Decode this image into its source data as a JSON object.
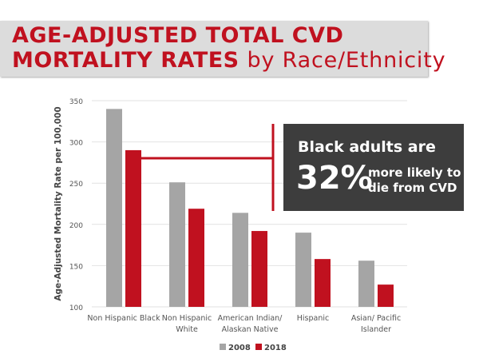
{
  "title": {
    "bold_line1": "AGE-ADJUSTED TOTAL CVD",
    "bold_line2": "MORTALITY RATES",
    "suffix": "by Race/Ethnicity"
  },
  "callout": {
    "line1": "Black adults are",
    "percent": "32%",
    "line2a": "more likely to",
    "line2b": "die from CVD"
  },
  "colors": {
    "title": "#c0111f",
    "series_2008": "#a5a5a5",
    "series_2018": "#c0111f",
    "callout_bg": "#3d3d3d",
    "band_bg": "#dcdcdc"
  },
  "chart_data": {
    "type": "bar",
    "ylabel": "Age-Adjusted Mortality Rate per 100,000",
    "xlabel": "",
    "ylim": [
      100,
      350
    ],
    "yticks": [
      100,
      150,
      200,
      250,
      300,
      350
    ],
    "grid": true,
    "legend": "bottom",
    "categories": [
      [
        "Non Hispanic Black"
      ],
      [
        "Non Hispanic",
        "White"
      ],
      [
        "American Indian/",
        "Alaskan Native"
      ],
      [
        "Hispanic"
      ],
      [
        "Asian/ Pacific",
        "Islander"
      ]
    ],
    "series": [
      {
        "name": "2008",
        "values": [
          340,
          251,
          214,
          190,
          156
        ]
      },
      {
        "name": "2018",
        "values": [
          290,
          219,
          192,
          158,
          127
        ]
      }
    ]
  }
}
